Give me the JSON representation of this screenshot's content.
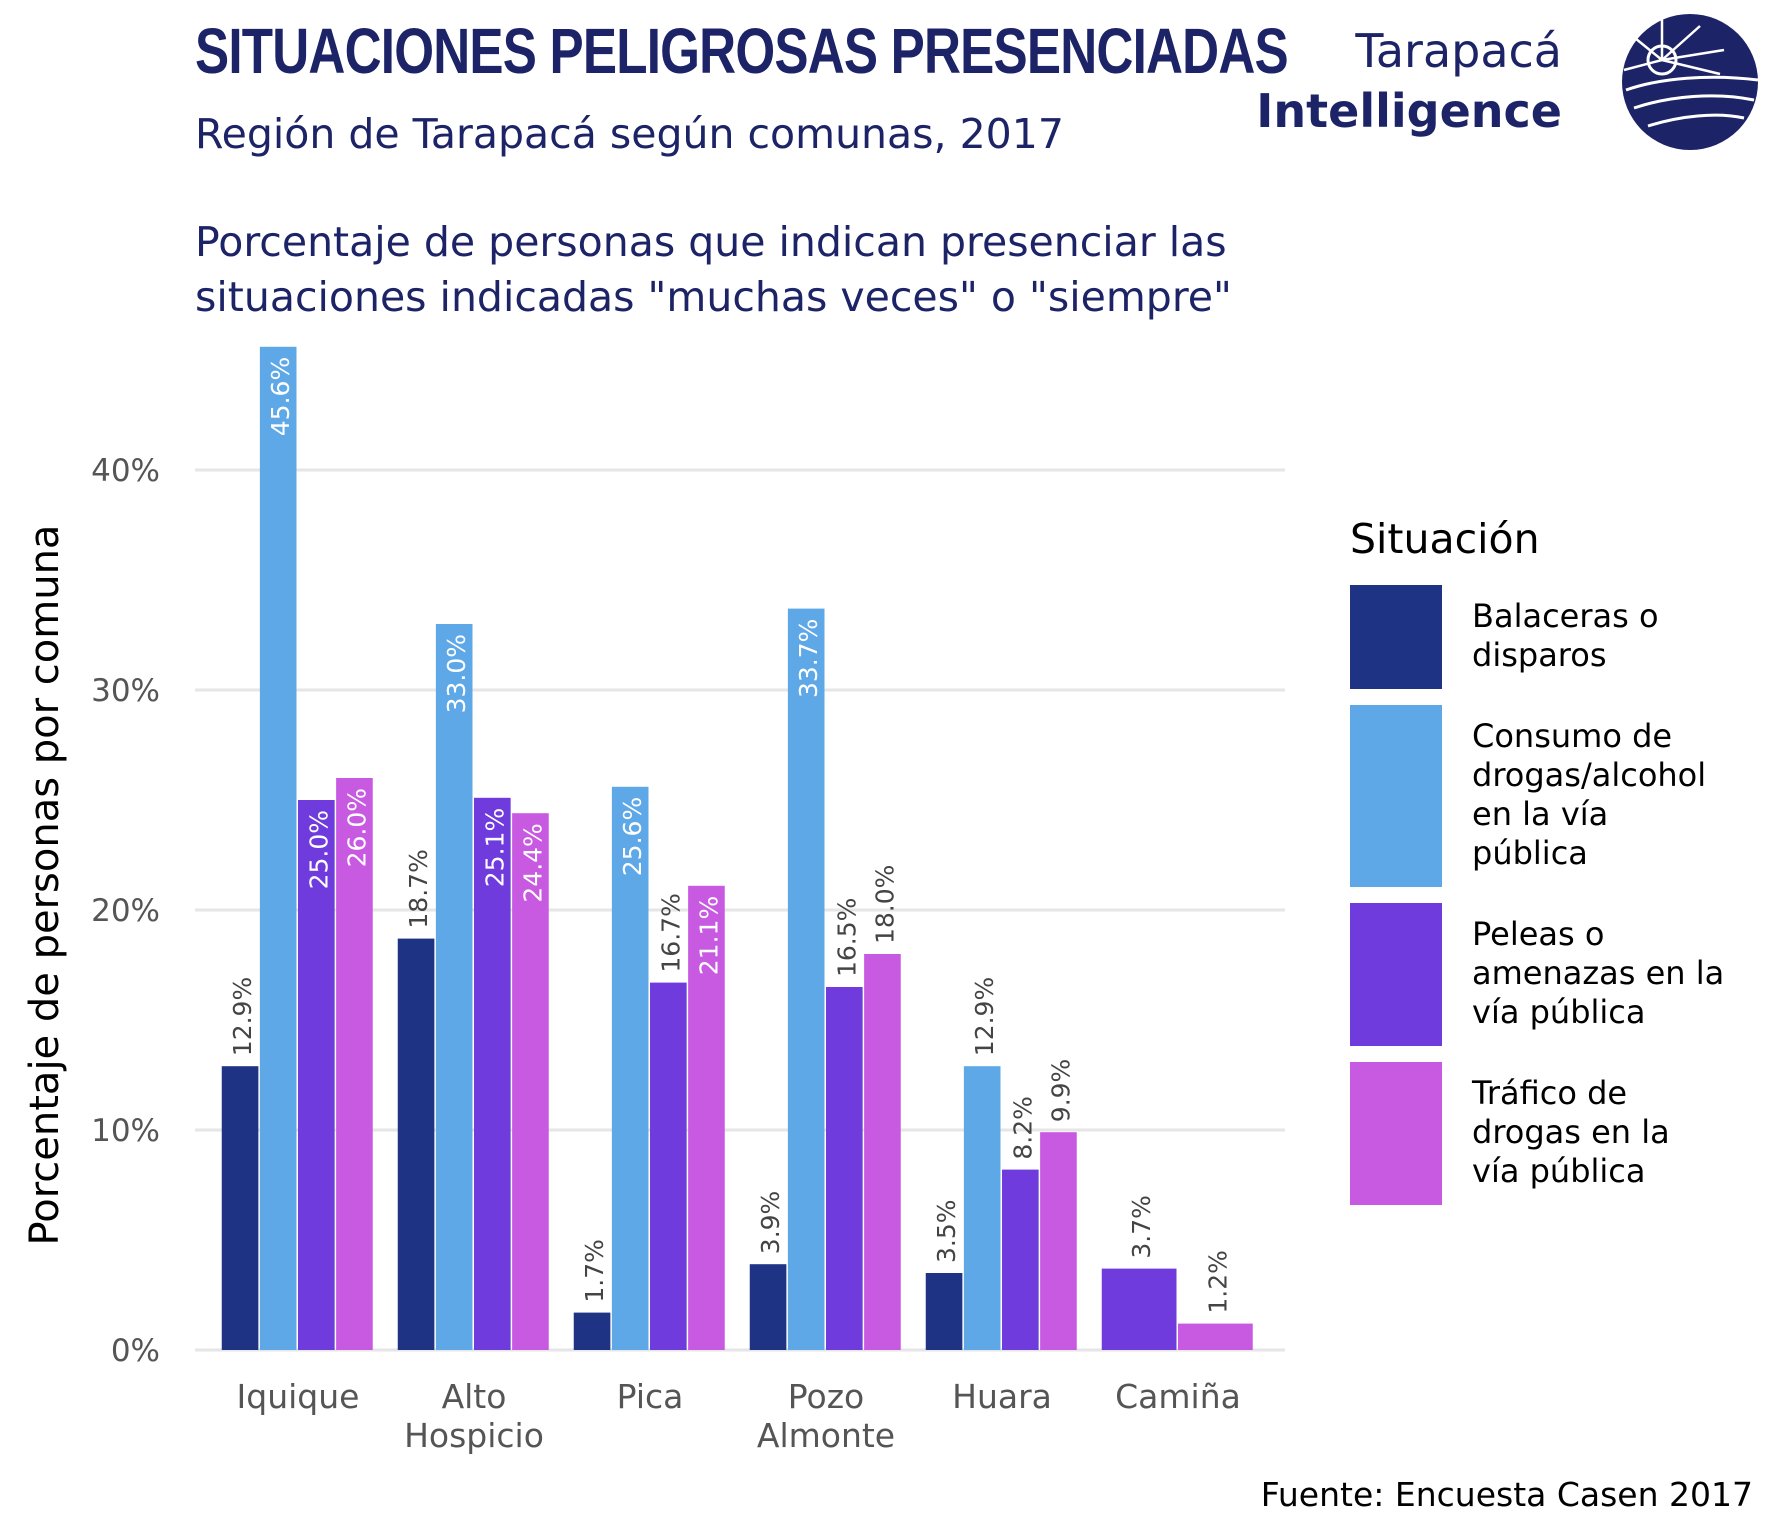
{
  "title": "SITUACIONES PELIGROSAS PRESENCIADAS",
  "subtitle": "Región de Tarapacá según comunas, 2017",
  "description_line1": "Porcentaje de personas que indican presenciar las",
  "description_line2": "situaciones indicadas \"muchas veces\" o \"siempre\"",
  "logo": {
    "line1": "Tarapacá",
    "line2": "Intelligence",
    "icon": "sun-sea-emblem-icon",
    "color": "#1c2366"
  },
  "source": "Fuente: Encuesta Casen 2017",
  "colors": {
    "title": "#1c2366",
    "grid": "#e6e6e6",
    "axis_text": "#555555"
  },
  "chart_data": {
    "type": "bar",
    "ylabel": "Porcentaje de personas por comuna",
    "xlabel": "",
    "ylim": [
      0,
      47
    ],
    "yticks": [
      0,
      10,
      20,
      30,
      40
    ],
    "ytick_labels": [
      "0%",
      "10%",
      "20%",
      "30%",
      "40%"
    ],
    "grid": true,
    "legend_title": "Situación",
    "legend_position": "right",
    "categories": [
      [
        "Iquique"
      ],
      [
        "Alto",
        "Hospicio"
      ],
      [
        "Pica"
      ],
      [
        "Pozo",
        "Almonte"
      ],
      [
        "Huara"
      ],
      [
        "Camiña"
      ]
    ],
    "series": [
      {
        "name_lines": [
          "Balaceras o",
          "disparos"
        ],
        "color": "#1f3385",
        "values": [
          12.9,
          18.7,
          1.7,
          3.9,
          3.5,
          null
        ],
        "labels": [
          "12.9%",
          "18.7%",
          "1.7%",
          "3.9%",
          "3.5%",
          null
        ]
      },
      {
        "name_lines": [
          "Consumo de",
          "drogas/alcohol",
          "en la vía",
          "pública"
        ],
        "color": "#5ea8e8",
        "values": [
          45.6,
          33.0,
          25.6,
          33.7,
          12.9,
          null
        ],
        "labels": [
          "45.6%",
          "33.0%",
          "25.6%",
          "33.7%",
          "12.9%",
          null
        ]
      },
      {
        "name_lines": [
          "Peleas o",
          "amenazas en la",
          "vía pública"
        ],
        "color": "#6f3bdd",
        "values": [
          25.0,
          25.1,
          16.7,
          16.5,
          8.2,
          3.7
        ],
        "labels": [
          "25.0%",
          "25.1%",
          "16.7%",
          "16.5%",
          "8.2%",
          "3.7%"
        ]
      },
      {
        "name_lines": [
          "Tráfico de",
          "drogas en la",
          "vía pública"
        ],
        "color": "#c85ae2",
        "values": [
          26.0,
          24.4,
          21.1,
          18.0,
          9.9,
          1.2
        ],
        "labels": [
          "26.0%",
          "24.4%",
          "21.1%",
          "18.0%",
          "9.9%",
          "1.2%"
        ]
      }
    ]
  }
}
